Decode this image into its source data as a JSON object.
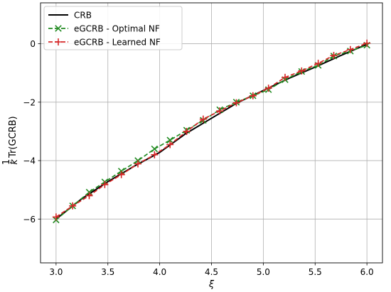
{
  "chart_data": {
    "type": "line",
    "xlabel": "ξ",
    "ylabel_frac_num": "1",
    "ylabel_frac_den": "k",
    "ylabel_text": "Tr(GCRB)",
    "xlim": [
      2.85,
      6.15
    ],
    "ylim": [
      -7.5,
      1.4
    ],
    "x_ticks": [
      3.0,
      3.5,
      4.0,
      4.5,
      5.0,
      5.5,
      6.0
    ],
    "x_tick_labels": [
      "3.0",
      "3.5",
      "4.0",
      "4.5",
      "5.0",
      "5.5",
      "6.0"
    ],
    "y_ticks": [
      -6,
      -4,
      -2,
      0
    ],
    "y_tick_labels": [
      "−6",
      "−4",
      "−2",
      "0"
    ],
    "grid": true,
    "legend_position": "top-left",
    "series": [
      {
        "name": "CRB",
        "color": "#000000",
        "style": "solid",
        "marker": "none",
        "x": [
          3.0,
          3.25,
          3.5,
          3.75,
          4.0,
          4.25,
          4.5,
          4.75,
          5.0,
          5.25,
          5.5,
          5.75,
          6.0
        ],
        "y": [
          -6.0,
          -5.3,
          -4.72,
          -4.2,
          -3.72,
          -3.08,
          -2.55,
          -2.02,
          -1.6,
          -1.18,
          -0.8,
          -0.4,
          -0.02
        ]
      },
      {
        "name": "eGCRB - Optimal NF",
        "color": "#228b22",
        "style": "dashed",
        "marker": "x",
        "x": [
          3.0,
          3.16,
          3.32,
          3.47,
          3.63,
          3.79,
          3.95,
          4.1,
          4.26,
          4.42,
          4.58,
          4.74,
          4.9,
          5.05,
          5.21,
          5.37,
          5.53,
          5.68,
          5.84,
          6.0
        ],
        "y": [
          -6.03,
          -5.55,
          -5.08,
          -4.73,
          -4.36,
          -4.0,
          -3.6,
          -3.3,
          -2.96,
          -2.62,
          -2.26,
          -2.0,
          -1.78,
          -1.57,
          -1.23,
          -0.95,
          -0.74,
          -0.42,
          -0.25,
          -0.05
        ]
      },
      {
        "name": "eGCRB - Learned NF",
        "color": "#d62728",
        "style": "dashed",
        "marker": "+",
        "x": [
          3.0,
          3.16,
          3.32,
          3.47,
          3.63,
          3.79,
          3.95,
          4.1,
          4.26,
          4.42,
          4.58,
          4.74,
          4.9,
          5.05,
          5.21,
          5.37,
          5.53,
          5.68,
          5.84,
          6.0
        ],
        "y": [
          -5.93,
          -5.55,
          -5.2,
          -4.82,
          -4.48,
          -4.11,
          -3.8,
          -3.45,
          -3.0,
          -2.58,
          -2.3,
          -2.02,
          -1.78,
          -1.52,
          -1.15,
          -0.93,
          -0.67,
          -0.4,
          -0.2,
          0.02
        ]
      }
    ]
  }
}
